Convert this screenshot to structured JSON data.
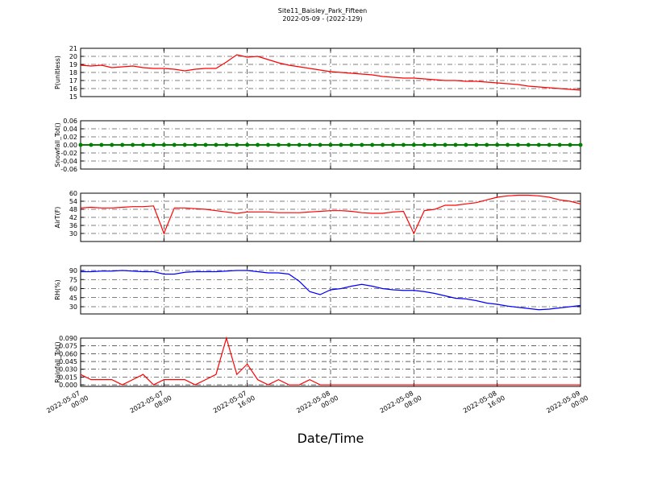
{
  "figure": {
    "title": "Site11_Baisley_Park_Fifteen",
    "subtitle": "2022-05-09 - (2022-129)",
    "xlabel": "Date/Time",
    "xlim": [
      "2022-05-07 00:00",
      "2022-05-09 00:00"
    ],
    "xticks": [
      "2022-05-07 00:00",
      "2022-05-07 08:00",
      "2022-05-07 16:00",
      "2022-05-08 00:00",
      "2022-05-08 08:00",
      "2022-05-08 16:00",
      "2022-05-09 00:00"
    ],
    "x": [
      "2022-05-07 00:00",
      "2022-05-07 01:00",
      "2022-05-07 02:00",
      "2022-05-07 03:00",
      "2022-05-07 04:00",
      "2022-05-07 05:00",
      "2022-05-07 06:00",
      "2022-05-07 07:00",
      "2022-05-07 08:00",
      "2022-05-07 09:00",
      "2022-05-07 10:00",
      "2022-05-07 11:00",
      "2022-05-07 12:00",
      "2022-05-07 13:00",
      "2022-05-07 14:00",
      "2022-05-07 15:00",
      "2022-05-07 16:00",
      "2022-05-07 17:00",
      "2022-05-07 18:00",
      "2022-05-07 19:00",
      "2022-05-07 20:00",
      "2022-05-07 21:00",
      "2022-05-07 22:00",
      "2022-05-07 23:00",
      "2022-05-08 00:00",
      "2022-05-08 01:00",
      "2022-05-08 02:00",
      "2022-05-08 03:00",
      "2022-05-08 04:00",
      "2022-05-08 05:00",
      "2022-05-08 06:00",
      "2022-05-08 07:00",
      "2022-05-08 08:00",
      "2022-05-08 09:00",
      "2022-05-08 10:00",
      "2022-05-08 11:00",
      "2022-05-08 12:00",
      "2022-05-08 13:00",
      "2022-05-08 14:00",
      "2022-05-08 15:00",
      "2022-05-08 16:00",
      "2022-05-08 17:00",
      "2022-05-08 18:00",
      "2022-05-08 19:00",
      "2022-05-08 20:00",
      "2022-05-08 21:00",
      "2022-05-08 22:00",
      "2022-05-08 23:00",
      "2022-05-09 00:00"
    ]
  },
  "chart_data": [
    {
      "type": "line",
      "ylabel": "P(unitless)",
      "ylim": [
        15,
        21
      ],
      "yticks": [
        15,
        16,
        17,
        18,
        19,
        20,
        21
      ],
      "grid": true,
      "series": [
        {
          "color": "#ff0000",
          "values": [
            18.9,
            18.8,
            18.9,
            18.6,
            18.7,
            18.8,
            18.6,
            18.5,
            18.5,
            18.4,
            18.2,
            18.4,
            18.5,
            18.5,
            19.3,
            20.2,
            19.9,
            20.0,
            19.6,
            19.2,
            18.9,
            18.7,
            18.5,
            18.3,
            18.1,
            18.0,
            17.9,
            17.8,
            17.7,
            17.5,
            17.4,
            17.3,
            17.3,
            17.2,
            17.1,
            17.0,
            17.0,
            16.9,
            16.9,
            16.8,
            16.7,
            16.6,
            16.5,
            16.3,
            16.2,
            16.1,
            16.0,
            15.9,
            15.8
          ]
        }
      ]
    },
    {
      "type": "line",
      "ylabel": "Snowfall_Tot()",
      "ylim": [
        -0.06,
        0.06
      ],
      "yticks": [
        -0.06,
        -0.04,
        -0.02,
        {
          "value": 0,
          "label": "0.00"
        },
        0.02,
        0.04,
        0.06
      ],
      "grid": true,
      "marker": "o",
      "series": [
        {
          "color": "#008000",
          "values": [
            0,
            0,
            0,
            0,
            0,
            0,
            0,
            0,
            0,
            0,
            0,
            0,
            0,
            0,
            0,
            0,
            0,
            0,
            0,
            0,
            0,
            0,
            0,
            0,
            0,
            0,
            0,
            0,
            0,
            0,
            0,
            0,
            0,
            0,
            0,
            0,
            0,
            0,
            0,
            0,
            0,
            0,
            0,
            0,
            0,
            0,
            0,
            0,
            0
          ]
        }
      ]
    },
    {
      "type": "line",
      "ylabel": "AirT(F)",
      "ylim": [
        24,
        60
      ],
      "yticks": [
        30,
        36,
        42,
        48,
        54,
        60
      ],
      "grid": true,
      "series": [
        {
          "color": "#ff0000",
          "values": [
            49,
            49.5,
            49,
            49,
            49.5,
            50,
            50,
            50.5,
            30,
            49,
            49,
            48.5,
            48,
            47,
            46,
            45,
            46,
            46,
            46,
            45.5,
            45.5,
            45.5,
            46,
            46.5,
            47,
            47,
            46.5,
            45.5,
            45,
            45,
            46,
            46.5,
            30,
            47,
            48,
            51,
            51,
            52,
            53,
            55,
            57,
            58,
            58.5,
            58.5,
            58,
            57,
            55,
            54,
            52
          ]
        }
      ]
    },
    {
      "type": "line",
      "ylabel": "RH(%)",
      "ylim": [
        18,
        98
      ],
      "yticks": [
        30,
        45,
        60,
        75,
        90
      ],
      "grid": true,
      "series": [
        {
          "color": "#0000ff",
          "values": [
            88,
            88,
            89,
            89,
            90,
            89,
            88,
            88,
            84,
            84,
            87,
            88,
            88,
            88,
            89,
            90,
            90,
            88,
            86,
            86,
            84,
            72,
            55,
            50,
            58,
            60,
            64,
            67,
            64,
            60,
            58,
            57,
            57,
            55,
            52,
            48,
            44,
            43,
            40,
            36,
            34,
            31,
            29,
            27,
            25,
            26,
            28,
            30,
            32
          ]
        }
      ]
    },
    {
      "type": "line",
      "ylabel": "Rainfall_Tot()",
      "ylim": [
        -0.003,
        0.09
      ],
      "yticks": [
        {
          "value": 0,
          "label": "0.000"
        },
        0.015,
        {
          "value": 0.03,
          "label": "0.030"
        },
        0.045,
        {
          "value": 0.06,
          "label": "0.060"
        },
        0.075,
        {
          "value": 0.09,
          "label": "0.090"
        }
      ],
      "grid": true,
      "series": [
        {
          "color": "#ff0000",
          "values": [
            0.02,
            0.01,
            0.01,
            0.01,
            0,
            0.01,
            0.02,
            0,
            0.01,
            0.01,
            0.01,
            0,
            0.01,
            0.02,
            0.09,
            0.02,
            0.04,
            0.01,
            0,
            0.01,
            0,
            0,
            0.01,
            0,
            0,
            0,
            0,
            0,
            0,
            0,
            0,
            0,
            0,
            0,
            0,
            0,
            0,
            0,
            0,
            0,
            0,
            0,
            0,
            0,
            0,
            0,
            0,
            0,
            0
          ]
        }
      ]
    }
  ]
}
